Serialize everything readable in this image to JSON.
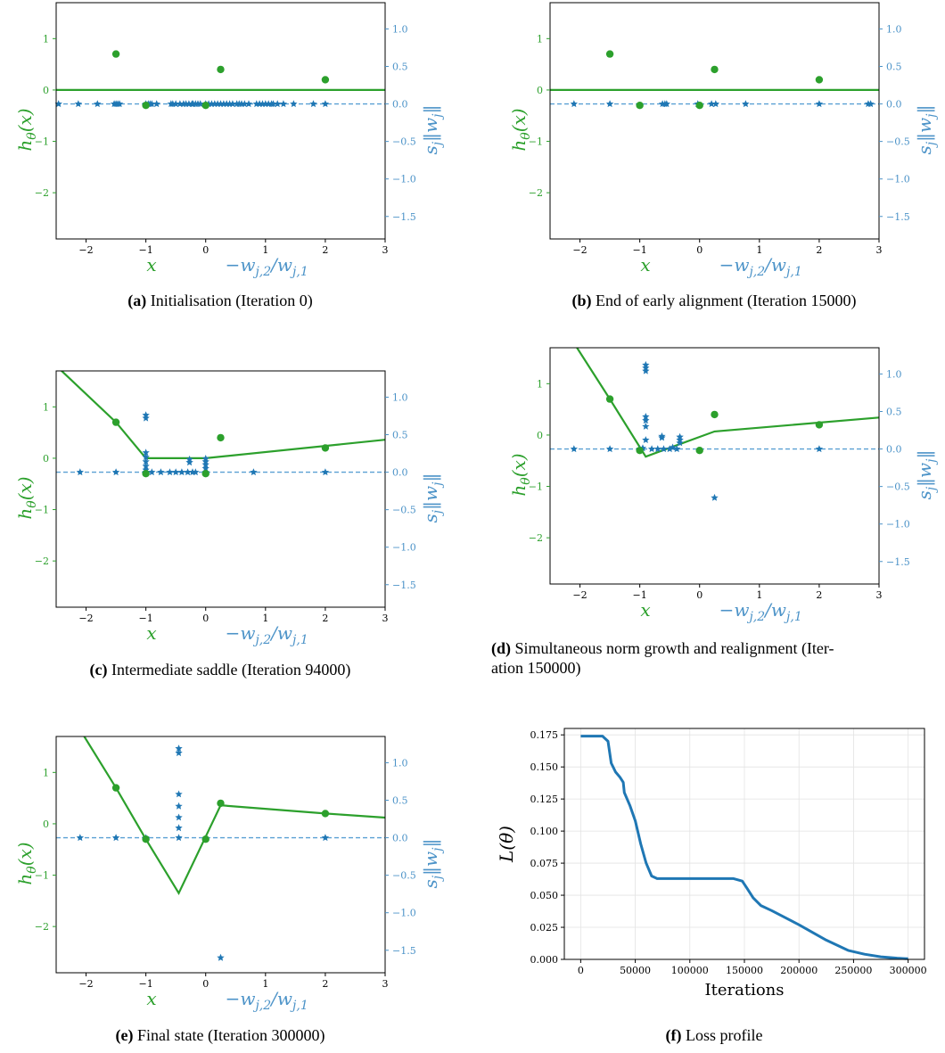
{
  "colors": {
    "green": "#2ca02c",
    "blue": "#1f77b4",
    "light_blue": "#5aa0d3",
    "label_blue": "#4c93c8"
  },
  "chart_data": [
    {
      "id": "a",
      "type": "line",
      "caption_letter": "(a)",
      "caption_text": "Initialisation (Iteration 0)",
      "caption_text2": "",
      "xlim": [
        -2.5,
        3
      ],
      "ylim_left": [
        -2.9,
        1.7
      ],
      "ylim_right": [
        -1.8,
        1.35
      ],
      "xticks": [
        "−2",
        "−1",
        "0",
        "1",
        "2",
        "3"
      ],
      "xtick_values": [
        -2,
        -1,
        0,
        1,
        2,
        3
      ],
      "yticks_left": [
        "−2",
        "−1",
        "0",
        "1"
      ],
      "ytick_left_values": [
        -2,
        -1,
        0,
        1
      ],
      "yticks_right": [
        "−1.5",
        "−1.0",
        "−0.5",
        "0.0",
        "0.5",
        "1.0"
      ],
      "ytick_right_values": [
        -1.5,
        -1.0,
        -0.5,
        0.0,
        0.5,
        1.0
      ],
      "xlabel_left": "x",
      "xlabel_right": "−w_{j,2}/w_{j,1}",
      "ylabel_left": "h_θ(x)",
      "ylabel_right": "s_j‖w_j‖",
      "data_points": [
        [
          -1.5,
          0.7
        ],
        [
          -1.0,
          -0.3
        ],
        [
          0.0,
          -0.3
        ],
        [
          0.25,
          0.4
        ],
        [
          2.0,
          0.2
        ]
      ],
      "fit_line": [
        [
          -2.5,
          0.0
        ],
        [
          3.0,
          0.0
        ]
      ],
      "neurons": [
        [
          -2.46,
          0
        ],
        [
          -2.13,
          0
        ],
        [
          -1.81,
          0
        ],
        [
          -1.53,
          0
        ],
        [
          -1.5,
          0
        ],
        [
          -1.47,
          0
        ],
        [
          -1.44,
          0
        ],
        [
          -1.0,
          0
        ],
        [
          -0.96,
          0
        ],
        [
          -0.93,
          0
        ],
        [
          -0.9,
          0
        ],
        [
          -0.82,
          0
        ],
        [
          -0.58,
          0
        ],
        [
          -0.55,
          0
        ],
        [
          -0.5,
          0
        ],
        [
          -0.43,
          0
        ],
        [
          -0.37,
          0
        ],
        [
          -0.33,
          0
        ],
        [
          -0.28,
          0
        ],
        [
          -0.23,
          0
        ],
        [
          -0.21,
          0
        ],
        [
          -0.17,
          0
        ],
        [
          -0.13,
          0
        ],
        [
          -0.09,
          0
        ],
        [
          0.0,
          0
        ],
        [
          0.05,
          0
        ],
        [
          0.1,
          0
        ],
        [
          0.15,
          0
        ],
        [
          0.2,
          0
        ],
        [
          0.25,
          0
        ],
        [
          0.3,
          0
        ],
        [
          0.35,
          0
        ],
        [
          0.4,
          0
        ],
        [
          0.45,
          0
        ],
        [
          0.52,
          0
        ],
        [
          0.56,
          0
        ],
        [
          0.6,
          0
        ],
        [
          0.65,
          0
        ],
        [
          0.72,
          0
        ],
        [
          0.85,
          0
        ],
        [
          0.9,
          0
        ],
        [
          0.95,
          0
        ],
        [
          1.0,
          0
        ],
        [
          1.05,
          0
        ],
        [
          1.1,
          0
        ],
        [
          1.13,
          0
        ],
        [
          1.2,
          0
        ],
        [
          1.3,
          0
        ],
        [
          1.47,
          0
        ],
        [
          1.8,
          0
        ],
        [
          2.0,
          0
        ]
      ]
    },
    {
      "id": "b",
      "type": "line",
      "caption_letter": "(b)",
      "caption_text": "End of early alignment (Iteration 15000)",
      "caption_text2": "",
      "xlim": [
        -2.5,
        3
      ],
      "ylim_left": [
        -2.9,
        1.7
      ],
      "ylim_right": [
        -1.8,
        1.35
      ],
      "xticks": [
        "−2",
        "−1",
        "0",
        "1",
        "2",
        "3"
      ],
      "xtick_values": [
        -2,
        -1,
        0,
        1,
        2,
        3
      ],
      "yticks_left": [
        "−2",
        "−1",
        "0",
        "1"
      ],
      "ytick_left_values": [
        -2,
        -1,
        0,
        1
      ],
      "yticks_right": [
        "−1.5",
        "−1.0",
        "−0.5",
        "0.0",
        "0.5",
        "1.0"
      ],
      "ytick_right_values": [
        -1.5,
        -1.0,
        -0.5,
        0.0,
        0.5,
        1.0
      ],
      "xlabel_left": "x",
      "xlabel_right": "−w_{j,2}/w_{j,1}",
      "ylabel_left": "h_θ(x)",
      "ylabel_right": "s_j‖w_j‖",
      "data_points": [
        [
          -1.5,
          0.7
        ],
        [
          -1.0,
          -0.3
        ],
        [
          0.0,
          -0.3
        ],
        [
          0.25,
          0.4
        ],
        [
          2.0,
          0.2
        ]
      ],
      "fit_line": [
        [
          -2.5,
          0.0
        ],
        [
          3.0,
          0.0
        ]
      ],
      "neurons": [
        [
          -2.1,
          0
        ],
        [
          -1.5,
          0
        ],
        [
          -0.62,
          0
        ],
        [
          -0.58,
          0
        ],
        [
          -0.55,
          0
        ],
        [
          -0.03,
          0
        ],
        [
          0.2,
          0
        ],
        [
          0.27,
          0
        ],
        [
          0.77,
          0
        ],
        [
          2.0,
          0
        ],
        [
          2.82,
          0
        ],
        [
          2.86,
          0
        ]
      ]
    },
    {
      "id": "c",
      "type": "line",
      "caption_letter": "(c)",
      "caption_text": "Intermediate saddle (Iteration 94000)",
      "caption_text2": "",
      "xlim": [
        -2.5,
        3
      ],
      "ylim_left": [
        -2.9,
        1.7
      ],
      "ylim_right": [
        -1.8,
        1.35
      ],
      "xticks": [
        "−2",
        "−1",
        "0",
        "1",
        "2",
        "3"
      ],
      "xtick_values": [
        -2,
        -1,
        0,
        1,
        2,
        3
      ],
      "yticks_left": [
        "−2",
        "−1",
        "0",
        "1"
      ],
      "ytick_left_values": [
        -2,
        -1,
        0,
        1
      ],
      "yticks_right": [
        "−1.5",
        "−1.0",
        "−0.5",
        "0.0",
        "0.5",
        "1.0"
      ],
      "ytick_right_values": [
        -1.5,
        -1.0,
        -0.5,
        0.0,
        0.5,
        1.0
      ],
      "xlabel_left": "x",
      "xlabel_right": "−w_{j,2}/w_{j,1}",
      "ylabel_left": "h_θ(x)",
      "ylabel_right": "s_j‖w_j‖",
      "data_points": [
        [
          -1.5,
          0.7
        ],
        [
          -1.0,
          -0.3
        ],
        [
          0.0,
          -0.3
        ],
        [
          0.25,
          0.4
        ],
        [
          2.0,
          0.2
        ]
      ],
      "fit_line": [
        [
          -2.5,
          1.8
        ],
        [
          -1.5,
          0.7
        ],
        [
          -1.0,
          0.0
        ],
        [
          -0.2,
          0.0
        ],
        [
          0.0,
          0.0
        ],
        [
          3.0,
          0.36
        ]
      ],
      "neurons": [
        [
          -2.1,
          0
        ],
        [
          -1.5,
          0
        ],
        [
          -1.0,
          0.0
        ],
        [
          -1.0,
          0.03
        ],
        [
          -1.0,
          0.08
        ],
        [
          -1.0,
          0.14
        ],
        [
          -1.0,
          0.2
        ],
        [
          -1.0,
          0.26
        ],
        [
          -1.0,
          0.72
        ],
        [
          -1.0,
          0.76
        ],
        [
          -0.9,
          0
        ],
        [
          -0.75,
          0
        ],
        [
          -0.6,
          0
        ],
        [
          -0.5,
          0
        ],
        [
          -0.4,
          0
        ],
        [
          -0.3,
          0.0
        ],
        [
          -0.27,
          0.13
        ],
        [
          -0.27,
          0.17
        ],
        [
          -0.22,
          0
        ],
        [
          -0.17,
          0
        ],
        [
          0.0,
          0.0
        ],
        [
          0.0,
          0.05
        ],
        [
          0.0,
          0.1
        ],
        [
          0.0,
          0.14
        ],
        [
          0.0,
          0.18
        ],
        [
          0.8,
          0
        ],
        [
          2.0,
          0
        ]
      ]
    },
    {
      "id": "d",
      "type": "line",
      "caption_letter": "(d)",
      "caption_text": "Simultaneous norm growth and realignment (Iter-",
      "caption_text2": "ation 150000)",
      "xlim": [
        -2.5,
        3
      ],
      "ylim_left": [
        -2.9,
        1.7
      ],
      "ylim_right": [
        -1.8,
        1.35
      ],
      "xticks": [
        "−2",
        "−1",
        "0",
        "1",
        "2",
        "3"
      ],
      "xtick_values": [
        -2,
        -1,
        0,
        1,
        2,
        3
      ],
      "yticks_left": [
        "−2",
        "−1",
        "0",
        "1"
      ],
      "ytick_left_values": [
        -2,
        -1,
        0,
        1
      ],
      "yticks_right": [
        "−1.5",
        "−1.0",
        "−0.5",
        "0.0",
        "0.5",
        "1.0"
      ],
      "ytick_right_values": [
        -1.5,
        -1.0,
        -0.5,
        0.0,
        0.5,
        1.0
      ],
      "xlabel_left": "x",
      "xlabel_right": "−w_{j,2}/w_{j,1}",
      "ylabel_left": "h_θ(x)",
      "ylabel_right": "s_j‖w_j‖",
      "data_points": [
        [
          -1.5,
          0.7
        ],
        [
          -1.0,
          -0.3
        ],
        [
          0.0,
          -0.3
        ],
        [
          0.25,
          0.4
        ],
        [
          2.0,
          0.2
        ]
      ],
      "fit_line": [
        [
          -2.05,
          1.7
        ],
        [
          -1.5,
          0.7
        ],
        [
          -0.9,
          -0.42
        ],
        [
          0.25,
          0.07
        ],
        [
          3.0,
          0.34
        ]
      ],
      "neurons": [
        [
          -2.1,
          0
        ],
        [
          -1.5,
          0
        ],
        [
          -1.0,
          0.0
        ],
        [
          -0.95,
          0.01
        ],
        [
          -0.9,
          0.12
        ],
        [
          -0.9,
          0.3
        ],
        [
          -0.9,
          0.38
        ],
        [
          -0.9,
          0.43
        ],
        [
          -0.9,
          1.04
        ],
        [
          -0.9,
          1.08
        ],
        [
          -0.9,
          1.12
        ],
        [
          -0.8,
          0.0
        ],
        [
          -0.7,
          0.0
        ],
        [
          -0.63,
          0.15
        ],
        [
          -0.63,
          0.17
        ],
        [
          -0.6,
          0.0
        ],
        [
          -0.5,
          0.0
        ],
        [
          -0.45,
          0.02
        ],
        [
          -0.38,
          0.0
        ],
        [
          -0.33,
          0.08
        ],
        [
          -0.33,
          0.12
        ],
        [
          -0.33,
          0.16
        ],
        [
          0.25,
          -0.65
        ],
        [
          2.0,
          0
        ]
      ]
    },
    {
      "id": "e",
      "type": "line",
      "caption_letter": "(e)",
      "caption_text": "Final state (Iteration 300000)",
      "caption_text2": "",
      "xlim": [
        -2.5,
        3
      ],
      "ylim_left": [
        -2.9,
        1.7
      ],
      "ylim_right": [
        -1.8,
        1.35
      ],
      "xticks": [
        "−2",
        "−1",
        "0",
        "1",
        "2",
        "3"
      ],
      "xtick_values": [
        -2,
        -1,
        0,
        1,
        2,
        3
      ],
      "yticks_left": [
        "−2",
        "−1",
        "0",
        "1"
      ],
      "ytick_left_values": [
        -2,
        -1,
        0,
        1
      ],
      "yticks_right": [
        "−1.5",
        "−1.0",
        "−0.5",
        "0.0",
        "0.5",
        "1.0"
      ],
      "ytick_right_values": [
        -1.5,
        -1.0,
        -0.5,
        0.0,
        0.5,
        1.0
      ],
      "xlabel_left": "x",
      "xlabel_right": "−w_{j,2}/w_{j,1}",
      "ylabel_left": "h_θ(x)",
      "ylabel_right": "s_j‖w_j‖",
      "data_points": [
        [
          -1.5,
          0.7
        ],
        [
          -1.0,
          -0.3
        ],
        [
          0.0,
          -0.3
        ],
        [
          0.25,
          0.4
        ],
        [
          2.0,
          0.2
        ]
      ],
      "fit_line": [
        [
          -2.03,
          1.7
        ],
        [
          -1.5,
          0.7
        ],
        [
          -1.0,
          -0.3
        ],
        [
          -0.45,
          -1.35
        ],
        [
          0.25,
          0.36
        ],
        [
          2.0,
          0.2
        ],
        [
          3.0,
          0.12
        ]
      ],
      "neurons": [
        [
          -2.1,
          0
        ],
        [
          -1.5,
          0
        ],
        [
          -1.0,
          0.0
        ],
        [
          -0.45,
          0.0
        ],
        [
          -0.45,
          0.13
        ],
        [
          -0.45,
          0.27
        ],
        [
          -0.45,
          0.42
        ],
        [
          -0.45,
          0.58
        ],
        [
          -0.45,
          1.13
        ],
        [
          -0.45,
          1.19
        ],
        [
          0.25,
          -1.6
        ],
        [
          2.0,
          0
        ]
      ]
    },
    {
      "id": "f",
      "type": "line",
      "caption_letter": "(f)",
      "caption_text": "Loss profile",
      "caption_text2": "",
      "xlim": [
        -15000,
        315000
      ],
      "ylim": [
        0.0,
        0.18
      ],
      "xticks": [
        "0",
        "50000",
        "100000",
        "150000",
        "200000",
        "250000",
        "300000"
      ],
      "xtick_values": [
        0,
        50000,
        100000,
        150000,
        200000,
        250000,
        300000
      ],
      "yticks": [
        "0.000",
        "0.025",
        "0.050",
        "0.075",
        "0.100",
        "0.125",
        "0.150",
        "0.175"
      ],
      "ytick_values": [
        0.0,
        0.025,
        0.05,
        0.075,
        0.1,
        0.125,
        0.15,
        0.175
      ],
      "xlabel": "Iterations",
      "ylabel": "L(θ)",
      "grid": true,
      "x": [
        0,
        20000,
        25000,
        28000,
        32000,
        36000,
        39000,
        40000,
        45000,
        50000,
        55000,
        60000,
        65000,
        70000,
        75000,
        100000,
        140000,
        148000,
        152000,
        158000,
        165000,
        175000,
        200000,
        225000,
        245000,
        260000,
        275000,
        290000,
        300000
      ],
      "y": [
        0.174,
        0.174,
        0.17,
        0.153,
        0.146,
        0.142,
        0.138,
        0.13,
        0.12,
        0.108,
        0.09,
        0.075,
        0.065,
        0.063,
        0.063,
        0.063,
        0.063,
        0.061,
        0.056,
        0.048,
        0.042,
        0.038,
        0.027,
        0.015,
        0.007,
        0.004,
        0.002,
        0.001,
        0.0005
      ]
    }
  ]
}
